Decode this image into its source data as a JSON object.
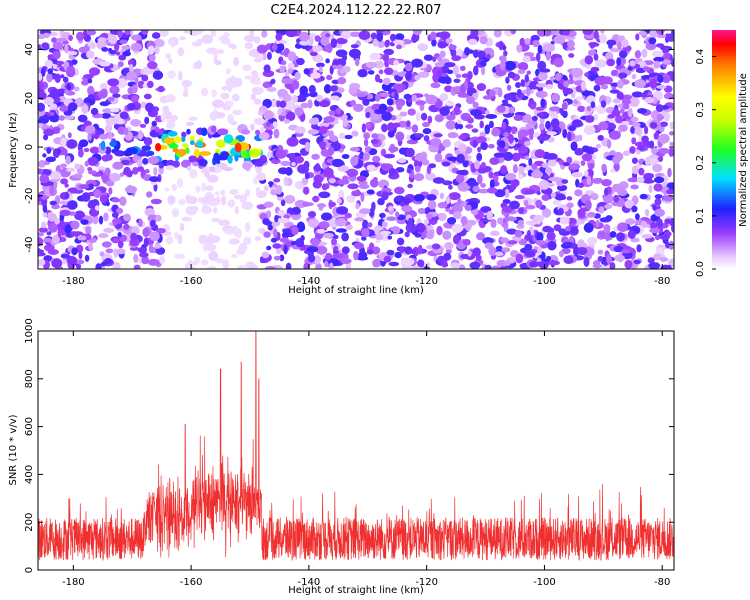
{
  "figure": {
    "title": "C2E4.2024.112.22.22.R07"
  },
  "colors": {
    "snr_line": "#f03030",
    "frame": "#000000",
    "background": "#ffffff"
  },
  "chart_data": [
    {
      "type": "heatmap",
      "xlabel": "Height of straight line (km)",
      "ylabel": "Frequency (Hz)",
      "xlim": [
        -186,
        -78
      ],
      "ylim": [
        -50,
        48
      ],
      "xticks": [
        -180,
        -160,
        -140,
        -120,
        -100,
        -80
      ],
      "yticks": [
        -40,
        -20,
        0,
        20,
        40
      ],
      "colorbar": {
        "label": "Normalized spectral amplitude",
        "range": [
          0,
          0.45
        ],
        "ticks": [
          "0.0",
          "0.1",
          "0.2",
          "0.3",
          "0.4"
        ],
        "colormap": "rainbow"
      },
      "features": [
        {
          "description": "strong echo band",
          "x_range": [
            -175,
            -148
          ],
          "y_center": 0,
          "peak_value": 0.45
        },
        {
          "description": "low-amplitude gap",
          "x_range": [
            -165,
            -148
          ],
          "value": 0.0
        }
      ],
      "noise_level": 0.08
    },
    {
      "type": "line",
      "xlabel": "Height of straight line (km)",
      "ylabel": "SNR (10 * v/v)",
      "xlim": [
        -186,
        -78
      ],
      "ylim": [
        0,
        1000
      ],
      "xticks": [
        -180,
        -160,
        -140,
        -120,
        -100,
        -80
      ],
      "yticks": [
        0,
        200,
        400,
        600,
        800,
        1000
      ],
      "baseline": 130,
      "noise_band": [
        0,
        350
      ],
      "peaks": [
        {
          "x": -161,
          "y": 610
        },
        {
          "x": -155,
          "y": 840
        },
        {
          "x": -151.5,
          "y": 870
        },
        {
          "x": -149,
          "y": 1000
        },
        {
          "x": -148.5,
          "y": 800
        }
      ]
    }
  ]
}
